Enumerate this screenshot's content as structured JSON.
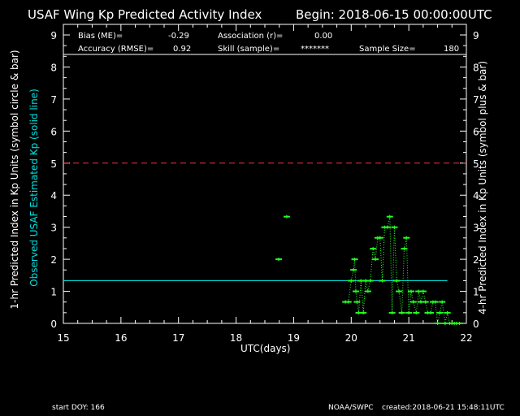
{
  "header": {
    "title": "USAF Wing Kp Predicted Activity Index",
    "begin": "Begin: 2018-06-15 00:00:00UTC"
  },
  "stats": {
    "bias_label": "Bias (ME)=",
    "bias_value": "-0.29",
    "association_label": "Association (r)=",
    "association_value": "0.00",
    "accuracy_label": "Accuracy (RMSE)=",
    "accuracy_value": "0.92",
    "skill_label": "Skill (sample)=",
    "skill_value": "*******",
    "sample_label": "Sample Size=",
    "sample_value": "180"
  },
  "footer": {
    "start_doy": "start DOY:  166",
    "source": "NOAA/SWPC",
    "created": "created:2018-06-21 15:48:11UTC"
  },
  "colors": {
    "background": "#000000",
    "axes": "#ffffff",
    "threshold": "#ff3030",
    "observed": "#00e0e0",
    "predicted": "#22ff22"
  },
  "chart_data": {
    "type": "scatter",
    "xlabel": "UTC(days)",
    "ylabel_left": "1-hr Predicted Index in Kp Units (symbol circle & bar)",
    "ylabel_left_secondary": "Observed USAF Estimated Kp (solid line)",
    "ylabel_right": "4-hr Predicted Index in Kp Units (symbol plus & bar)",
    "xlim": [
      15,
      22
    ],
    "ylim": [
      0,
      9.33
    ],
    "xticks": [
      15,
      16,
      17,
      18,
      19,
      20,
      21,
      22
    ],
    "yticks": [
      0,
      1,
      2,
      3,
      4,
      5,
      6,
      7,
      8,
      9
    ],
    "threshold": {
      "y": 5,
      "style": "dashed"
    },
    "observed_line": {
      "x_start": 15,
      "x_end": 21.67,
      "y": 1.33
    },
    "series": [
      {
        "marker": "plus",
        "x": [
          18.74,
          18.88,
          19.9,
          19.95,
          20.0,
          20.04,
          20.06,
          20.08,
          20.1,
          20.13,
          20.17,
          20.21,
          20.25,
          20.29,
          20.33,
          20.38,
          20.42,
          20.46,
          20.5,
          20.54,
          20.58,
          20.63,
          20.67,
          20.71,
          20.75,
          20.79,
          20.83,
          20.88,
          20.92,
          20.96,
          21.0,
          21.04,
          21.08,
          21.13,
          21.17,
          21.21,
          21.25,
          21.29,
          21.33,
          21.38,
          21.42,
          21.46,
          21.5,
          21.54,
          21.58,
          21.63,
          21.67,
          21.71,
          21.75,
          21.79,
          21.83,
          21.88
        ],
        "y": [
          2.0,
          3.33,
          0.67,
          0.67,
          1.33,
          1.67,
          2.0,
          1.0,
          0.67,
          0.33,
          1.33,
          0.33,
          1.33,
          1.0,
          1.33,
          2.33,
          2.0,
          2.67,
          2.67,
          1.33,
          3.0,
          3.0,
          3.33,
          0.33,
          3.0,
          1.33,
          1.0,
          0.33,
          2.33,
          2.67,
          0.33,
          1.0,
          0.67,
          0.33,
          1.0,
          0.67,
          1.0,
          0.67,
          0.33,
          0.33,
          0.67,
          0.67,
          0.0,
          0.33,
          0.67,
          0.0,
          0.33,
          0.0,
          0.0,
          0.0,
          0.0,
          0.0
        ]
      }
    ]
  }
}
